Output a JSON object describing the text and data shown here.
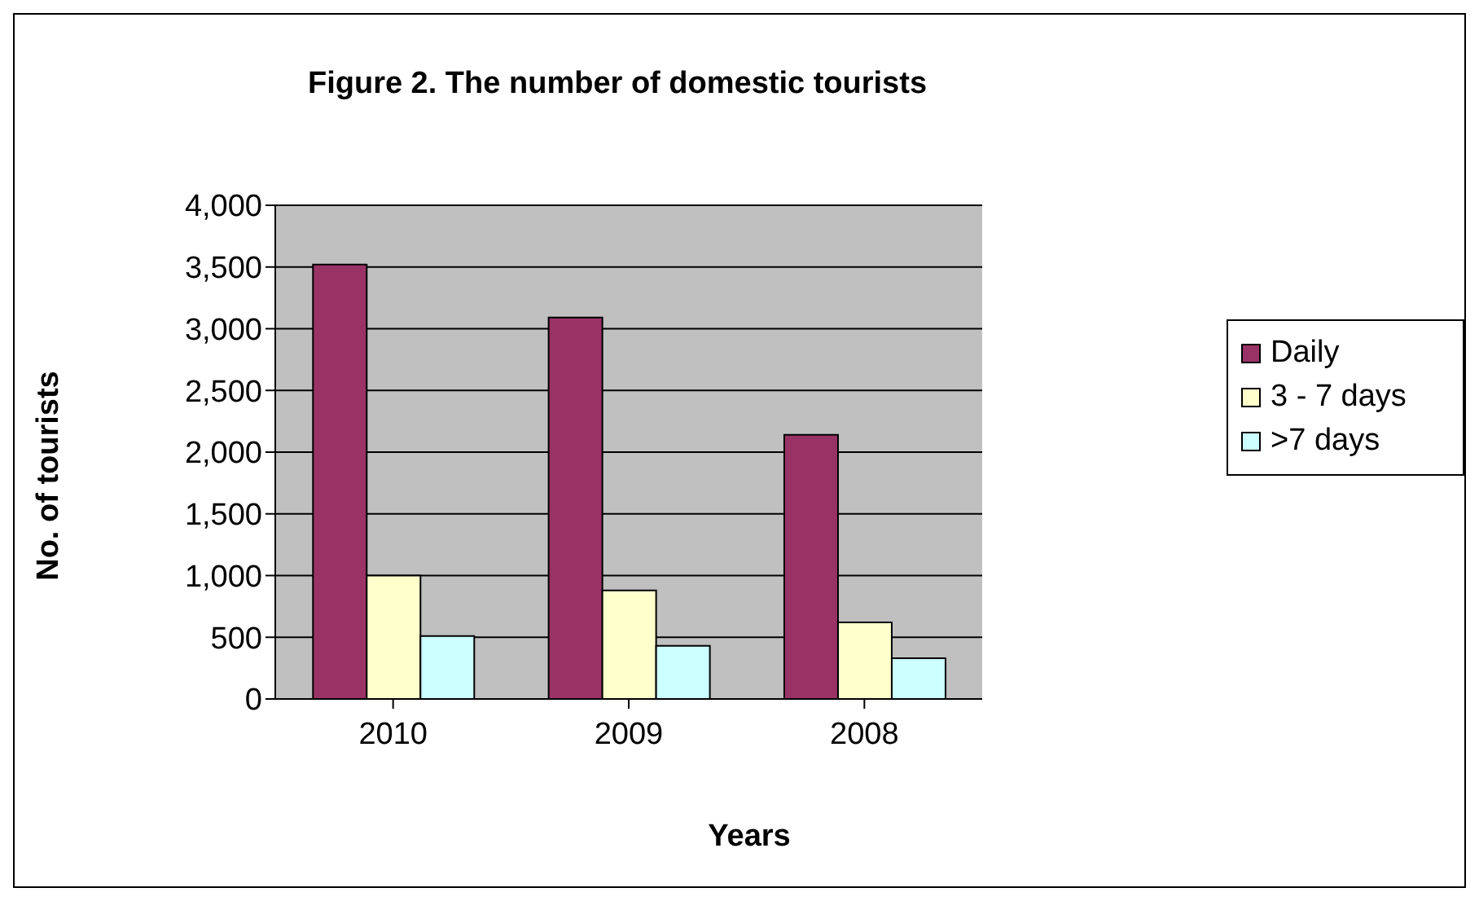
{
  "chart_data": {
    "type": "bar",
    "title": "Figure 2. The number of domestic tourists",
    "xlabel": "Years",
    "ylabel": "No. of tourists",
    "categories": [
      "2010",
      "2009",
      "2008"
    ],
    "series": [
      {
        "name": "Daily",
        "color": "#993366",
        "values": [
          3520,
          3090,
          2140
        ]
      },
      {
        "name": "3 - 7 days",
        "color": "#ffffcc",
        "values": [
          1000,
          880,
          620
        ]
      },
      {
        "name": ">7 days",
        "color": "#ccffff",
        "values": [
          510,
          430,
          330
        ]
      }
    ],
    "ylim": [
      0,
      4000
    ],
    "yticks": [
      {
        "value": 0,
        "label": "0"
      },
      {
        "value": 500,
        "label": "500"
      },
      {
        "value": 1000,
        "label": "1,000"
      },
      {
        "value": 1500,
        "label": "1,500"
      },
      {
        "value": 2000,
        "label": "2,000"
      },
      {
        "value": 2500,
        "label": "2,500"
      },
      {
        "value": 3000,
        "label": "3,000"
      },
      {
        "value": 3500,
        "label": "3,500"
      },
      {
        "value": 4000,
        "label": "4,000"
      }
    ],
    "grid": "y",
    "legend": "right"
  }
}
